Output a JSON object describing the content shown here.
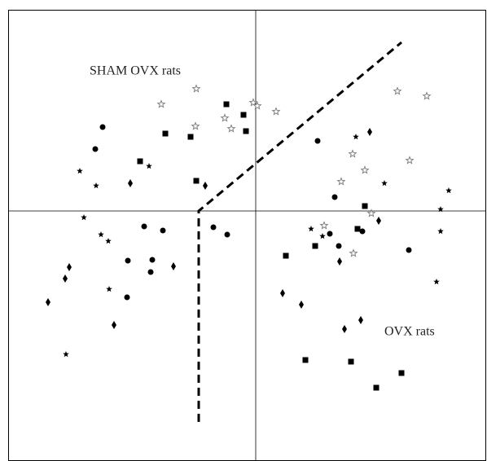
{
  "chart_data": {
    "type": "scatter",
    "annotations": [
      "SHAM OVX rats",
      "OVX rats"
    ],
    "xlim": [
      -304,
      283
    ],
    "ylim": [
      -300,
      247
    ],
    "zero_lines": true,
    "series": [
      {
        "marker": "circle",
        "color": "#000000",
        "x": [
          -188,
          -197,
          -137,
          -114,
          -157,
          -127,
          -129,
          -158,
          -52,
          -35,
          76,
          97,
          91,
          102,
          131,
          188
        ],
        "values": [
          103,
          76,
          -19,
          -24,
          -61,
          -60,
          -75,
          -106,
          -20,
          -29,
          86,
          17,
          -28,
          -43,
          -25,
          -48
        ]
      },
      {
        "marker": "square",
        "color": "#000000",
        "x": [
          -36,
          -15,
          -12,
          -111,
          -80,
          -142,
          -73,
          134,
          125,
          73,
          37,
          61,
          117,
          179,
          148
        ],
        "values": [
          131,
          118,
          98,
          95,
          91,
          61,
          37,
          6,
          -22,
          -43,
          -55,
          -183,
          -185,
          -199,
          -217
        ]
      },
      {
        "marker": "diamond",
        "color": "#000000",
        "x": [
          140,
          -154,
          -62,
          151,
          103,
          -229,
          -234,
          -101,
          -255,
          33,
          56,
          -174,
          129,
          109
        ],
        "values": [
          97,
          34,
          31,
          -12,
          -62,
          -69,
          -83,
          -68,
          -112,
          -101,
          -115,
          -140,
          -134,
          -145
        ]
      },
      {
        "marker": "star",
        "color": "#000000",
        "x": [
          -216,
          -196,
          -131,
          -211,
          -190,
          -181,
          123,
          158,
          237,
          227,
          227,
          68,
          82,
          -180,
          222,
          -233
        ],
        "values": [
          49,
          31,
          55,
          -8,
          -29,
          -37,
          91,
          34,
          25,
          2,
          -25,
          -22,
          -31,
          -96,
          -87,
          -176
        ]
      },
      {
        "marker": "open-star",
        "color": "#777777",
        "x": [
          -73,
          -116,
          174,
          210,
          -3,
          2,
          -38,
          25,
          -74,
          -30,
          105,
          134,
          189,
          119,
          142,
          84,
          120
        ],
        "values": [
          150,
          131,
          147,
          141,
          133,
          129,
          114,
          122,
          104,
          101,
          36,
          50,
          62,
          70,
          -3,
          -18,
          -52
        ]
      }
    ]
  }
}
